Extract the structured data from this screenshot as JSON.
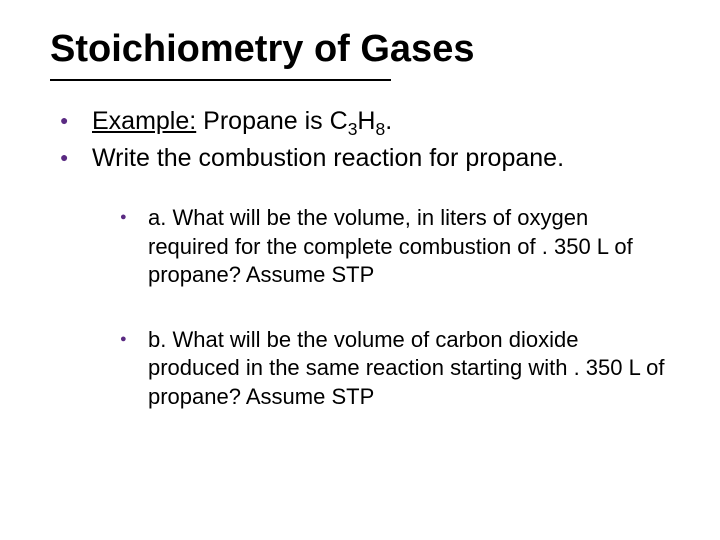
{
  "colors": {
    "bullet": "#5a2a82",
    "text": "#000000",
    "background": "#ffffff"
  },
  "typography": {
    "title_fontsize": 38,
    "body_fontsize": 25,
    "sub_fontsize": 22,
    "font_family": "Arial"
  },
  "title": "Stoichiometry of Gases",
  "line1": {
    "label": "Example:",
    "text_before": "  Propane is C",
    "sub1": "3",
    "mid": "H",
    "sub2": "8",
    "after": "."
  },
  "line2": "Write the combustion reaction for propane.",
  "subA": "a. What will be the volume, in liters of oxygen required for the complete combustion of . 350 L of propane? Assume STP",
  "subB": "b. What will be the volume of carbon dioxide produced in the same reaction starting with . 350 L of propane?  Assume STP"
}
